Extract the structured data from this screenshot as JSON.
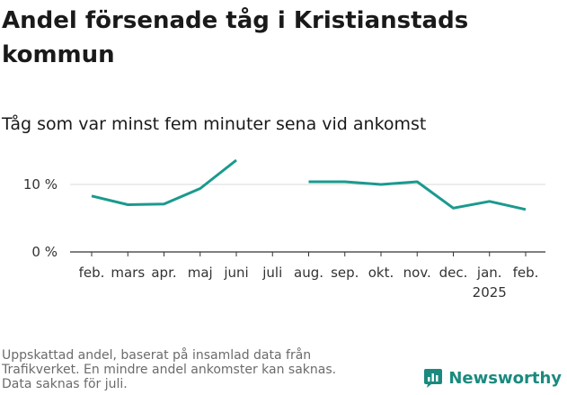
{
  "header": {
    "title": "Andel försenade tåg i Kristianstads kommun",
    "subtitle": "Tåg som var minst fem minuter sena vid ankomst"
  },
  "footer": {
    "note_lines": [
      "Uppskattad andel, baserat på insamlad data från",
      "Trafikverket. En mindre andel ankomster kan saknas.",
      "Data saknas för juli."
    ],
    "brand": "Newsworthy",
    "brand_icon": "bar-chart-icon",
    "brand_color": "#1a8a7e"
  },
  "chart_data": {
    "type": "line",
    "categories": [
      "feb.",
      "mars",
      "apr.",
      "maj",
      "juni",
      "juli",
      "aug.",
      "sep.",
      "okt.",
      "nov.",
      "dec.",
      "jan.",
      "feb."
    ],
    "year_labels": [
      {
        "index": 11,
        "label": "2025"
      }
    ],
    "y_ticks": [
      {
        "value": 0,
        "label": "0 %"
      },
      {
        "value": 10,
        "label": "10 %"
      }
    ],
    "ylim": [
      0,
      14
    ],
    "grid": true,
    "series": [
      {
        "color": "#1a9a8e",
        "values": [
          8.3,
          7.0,
          7.1,
          9.4,
          13.6,
          null,
          10.4,
          10.4,
          10.0,
          10.4,
          6.5,
          7.5,
          6.3
        ]
      }
    ]
  }
}
